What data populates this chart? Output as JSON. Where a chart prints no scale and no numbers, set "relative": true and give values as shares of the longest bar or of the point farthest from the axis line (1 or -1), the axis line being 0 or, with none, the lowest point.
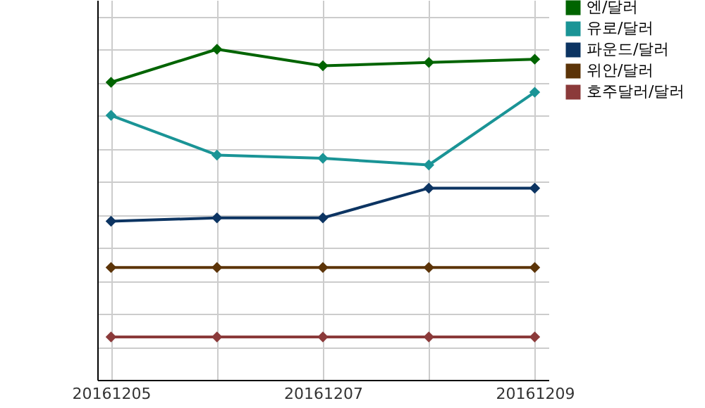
{
  "chart_data": {
    "type": "line",
    "relative": true,
    "categories": [
      "20161205",
      null,
      "20161207",
      null,
      "20161209"
    ],
    "series": [
      {
        "name": "엔/달러",
        "color": "#006400",
        "values": [
          0.9,
          1,
          0.95,
          0.96,
          0.97
        ]
      },
      {
        "name": "유로/달러",
        "color": "#1a9496",
        "values": [
          0.8,
          0.68,
          0.67,
          0.65,
          0.87
        ]
      },
      {
        "name": "파운드/달러",
        "color": "#0c3462",
        "values": [
          0.48,
          0.49,
          0.49,
          0.58,
          0.58
        ]
      },
      {
        "name": "위안/달러",
        "color": "#5c3408",
        "values": [
          0.34,
          0.34,
          0.34,
          0.34,
          0.34
        ]
      },
      {
        "name": "호주달러/달러",
        "color": "#8b3a3a",
        "values": [
          0.13,
          0.13,
          0.13,
          0.13,
          0.13
        ]
      }
    ],
    "grid": true,
    "legend": "top right",
    "marker": "diamond",
    "line_style": "solid"
  }
}
